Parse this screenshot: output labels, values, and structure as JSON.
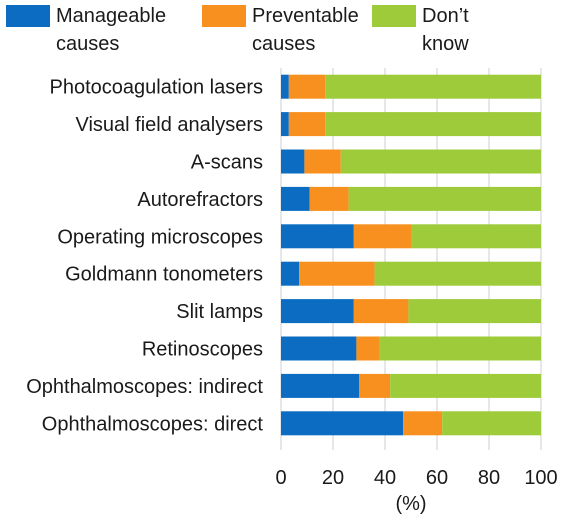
{
  "chart_data": {
    "type": "bar",
    "orientation": "horizontal",
    "stacked": true,
    "categories": [
      "Photocoagulation lasers",
      "Visual field analysers",
      "A-scans",
      "Autorefractors",
      "Operating microscopes",
      "Goldmann tonometers",
      "Slit lamps",
      "Retinoscopes",
      "Ophthalmoscopes: indirect",
      "Ophthalmoscopes: direct"
    ],
    "series": [
      {
        "name": "Manageable causes",
        "color": "#0b6cc2",
        "values": [
          3,
          3,
          9,
          11,
          28,
          7,
          28,
          29,
          30,
          47
        ]
      },
      {
        "name": "Preventable causes",
        "color": "#f7901e",
        "values": [
          14,
          14,
          14,
          15,
          22,
          29,
          21,
          9,
          12,
          15
        ]
      },
      {
        "name": "Don’t know",
        "color": "#9dcb3a",
        "values": [
          83,
          83,
          77,
          74,
          50,
          64,
          51,
          62,
          58,
          38
        ]
      }
    ],
    "xlabel": "(%)",
    "xlim": [
      0,
      100
    ],
    "xticks": [
      0,
      20,
      40,
      60,
      80,
      100
    ],
    "grid": "vertical",
    "legend_position": "top"
  },
  "legend": [
    {
      "label": "Manageable\ncauses",
      "color": "#0b6cc2"
    },
    {
      "label": "Preventable\ncauses",
      "color": "#f7901e"
    },
    {
      "label": "Don’t\nknow",
      "color": "#9dcb3a"
    }
  ]
}
